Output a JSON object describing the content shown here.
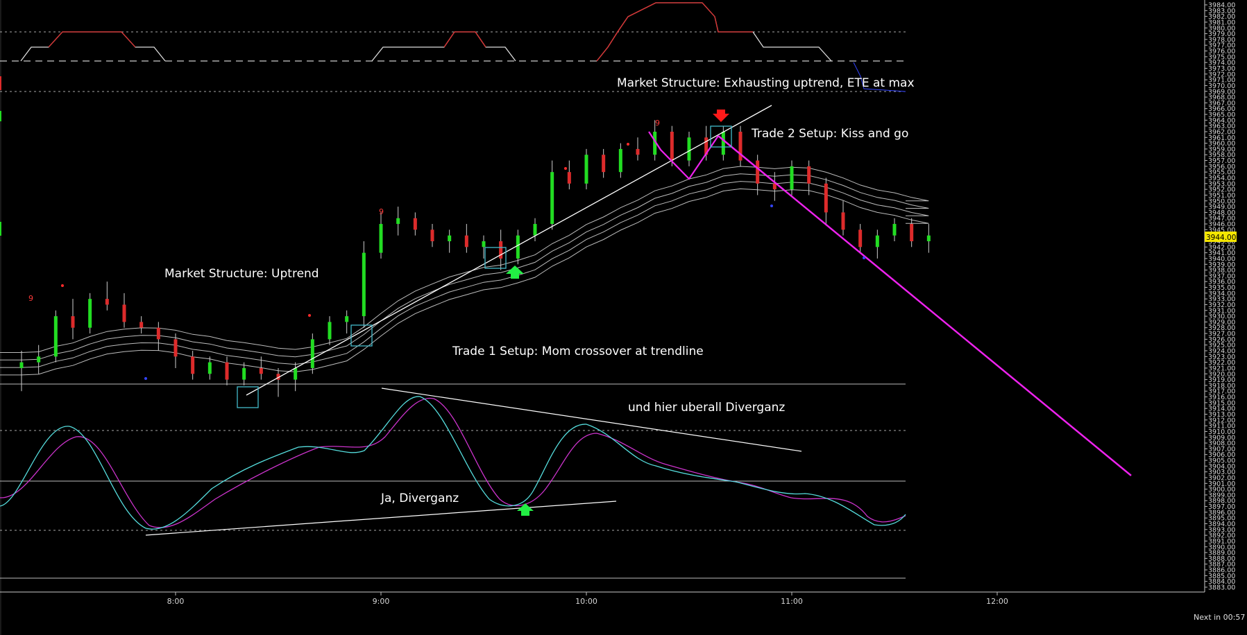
{
  "status_text": "Next in 00:57",
  "last_price_label": "3944.00",
  "colors": {
    "background": "#000000",
    "bull_candle": "#22dd22",
    "bear_candle": "#dd2b2b",
    "trendline": "#ffffff",
    "projection": "#ee22ee",
    "oscillator_fast": "#55dddd",
    "oscillator_slow": "#cc33cc",
    "signal_up": "#22ee44",
    "signal_down": "#ff1a1a",
    "box": "#44bbcc",
    "last_price_bg": "#f5e600"
  },
  "annotations": {
    "ms_exhausting": "Market Structure:  Exhausting uptrend, ETE at max",
    "trade2": "Trade 2 Setup:  Kiss and go",
    "ms_uptrend": "Market Structure:  Uptrend",
    "trade1": "Trade 1 Setup:  Mom crossover at trendline",
    "diverganz_overall": "und hier uberall Diverganz",
    "ja_diverganz": "Ja, Diverganz"
  },
  "count_labels": [
    "9",
    "9",
    "9"
  ],
  "chart_data": {
    "type": "candlestick",
    "title": "",
    "x_ticks": [
      "8:00",
      "9:00",
      "10:00",
      "11:00",
      "12:00"
    ],
    "x_range": [
      "7:12",
      "12:50"
    ],
    "y_range": [
      3883,
      3985
    ],
    "y_step": 1,
    "bar_minutes": 5,
    "candles": [
      {
        "t": "7:15",
        "o": 3921,
        "h": 3924,
        "l": 3917,
        "c": 3922
      },
      {
        "t": "7:20",
        "o": 3922,
        "h": 3925,
        "l": 3920,
        "c": 3923
      },
      {
        "t": "7:25",
        "o": 3923,
        "h": 3931,
        "l": 3922,
        "c": 3930
      },
      {
        "t": "7:30",
        "o": 3930,
        "h": 3933,
        "l": 3926,
        "c": 3928
      },
      {
        "t": "7:35",
        "o": 3928,
        "h": 3934,
        "l": 3927,
        "c": 3933
      },
      {
        "t": "7:40",
        "o": 3933,
        "h": 3936,
        "l": 3931,
        "c": 3932
      },
      {
        "t": "7:45",
        "o": 3932,
        "h": 3934,
        "l": 3928,
        "c": 3929
      },
      {
        "t": "7:50",
        "o": 3929,
        "h": 3930,
        "l": 3927,
        "c": 3928
      },
      {
        "t": "7:55",
        "o": 3928,
        "h": 3929,
        "l": 3924,
        "c": 3926
      },
      {
        "t": "8:00",
        "o": 3926,
        "h": 3927,
        "l": 3921,
        "c": 3923
      },
      {
        "t": "8:05",
        "o": 3923,
        "h": 3924,
        "l": 3919,
        "c": 3920
      },
      {
        "t": "8:10",
        "o": 3920,
        "h": 3923,
        "l": 3919,
        "c": 3922
      },
      {
        "t": "8:15",
        "o": 3922,
        "h": 3923,
        "l": 3918,
        "c": 3919
      },
      {
        "t": "8:20",
        "o": 3919,
        "h": 3922,
        "l": 3918,
        "c": 3921
      },
      {
        "t": "8:25",
        "o": 3921,
        "h": 3923,
        "l": 3919,
        "c": 3920
      },
      {
        "t": "8:30",
        "o": 3920,
        "h": 3921,
        "l": 3916,
        "c": 3919
      },
      {
        "t": "8:35",
        "o": 3919,
        "h": 3922,
        "l": 3917,
        "c": 3921
      },
      {
        "t": "8:40",
        "o": 3921,
        "h": 3927,
        "l": 3920,
        "c": 3926
      },
      {
        "t": "8:45",
        "o": 3926,
        "h": 3930,
        "l": 3925,
        "c": 3929
      },
      {
        "t": "8:50",
        "o": 3929,
        "h": 3931,
        "l": 3927,
        "c": 3930
      },
      {
        "t": "8:55",
        "o": 3930,
        "h": 3943,
        "l": 3928,
        "c": 3941
      },
      {
        "t": "9:00",
        "o": 3941,
        "h": 3948,
        "l": 3940,
        "c": 3946
      },
      {
        "t": "9:05",
        "o": 3946,
        "h": 3949,
        "l": 3944,
        "c": 3947
      },
      {
        "t": "9:10",
        "o": 3947,
        "h": 3948,
        "l": 3944,
        "c": 3945
      },
      {
        "t": "9:15",
        "o": 3945,
        "h": 3946,
        "l": 3942,
        "c": 3943
      },
      {
        "t": "9:20",
        "o": 3943,
        "h": 3945,
        "l": 3941,
        "c": 3944
      },
      {
        "t": "9:25",
        "o": 3944,
        "h": 3946,
        "l": 3941,
        "c": 3942
      },
      {
        "t": "9:30",
        "o": 3942,
        "h": 3944,
        "l": 3940,
        "c": 3943
      },
      {
        "t": "9:35",
        "o": 3943,
        "h": 3945,
        "l": 3938,
        "c": 3940
      },
      {
        "t": "9:40",
        "o": 3940,
        "h": 3945,
        "l": 3939,
        "c": 3944
      },
      {
        "t": "9:45",
        "o": 3944,
        "h": 3947,
        "l": 3943,
        "c": 3946
      },
      {
        "t": "9:50",
        "o": 3946,
        "h": 3957,
        "l": 3945,
        "c": 3955
      },
      {
        "t": "9:55",
        "o": 3955,
        "h": 3957,
        "l": 3952,
        "c": 3953
      },
      {
        "t": "10:00",
        "o": 3953,
        "h": 3959,
        "l": 3952,
        "c": 3958
      },
      {
        "t": "10:05",
        "o": 3958,
        "h": 3959,
        "l": 3954,
        "c": 3955
      },
      {
        "t": "10:10",
        "o": 3955,
        "h": 3960,
        "l": 3954,
        "c": 3959
      },
      {
        "t": "10:15",
        "o": 3959,
        "h": 3961,
        "l": 3957,
        "c": 3958
      },
      {
        "t": "10:20",
        "o": 3958,
        "h": 3964,
        "l": 3957,
        "c": 3962
      },
      {
        "t": "10:25",
        "o": 3962,
        "h": 3963,
        "l": 3956,
        "c": 3957
      },
      {
        "t": "10:30",
        "o": 3957,
        "h": 3962,
        "l": 3956,
        "c": 3961
      },
      {
        "t": "10:35",
        "o": 3961,
        "h": 3963,
        "l": 3957,
        "c": 3958
      },
      {
        "t": "10:40",
        "o": 3958,
        "h": 3963,
        "l": 3957,
        "c": 3962
      },
      {
        "t": "10:45",
        "o": 3962,
        "h": 3963,
        "l": 3956,
        "c": 3957
      },
      {
        "t": "10:50",
        "o": 3957,
        "h": 3958,
        "l": 3951,
        "c": 3953
      },
      {
        "t": "10:55",
        "o": 3953,
        "h": 3955,
        "l": 3950,
        "c": 3952
      },
      {
        "t": "11:00",
        "o": 3952,
        "h": 3957,
        "l": 3951,
        "c": 3956
      },
      {
        "t": "11:05",
        "o": 3956,
        "h": 3957,
        "l": 3951,
        "c": 3953
      },
      {
        "t": "11:10",
        "o": 3953,
        "h": 3954,
        "l": 3946,
        "c": 3948
      },
      {
        "t": "11:15",
        "o": 3948,
        "h": 3950,
        "l": 3944,
        "c": 3945
      },
      {
        "t": "11:20",
        "o": 3945,
        "h": 3946,
        "l": 3941,
        "c": 3942
      },
      {
        "t": "11:25",
        "o": 3942,
        "h": 3945,
        "l": 3940,
        "c": 3944
      },
      {
        "t": "11:30",
        "o": 3944,
        "h": 3947,
        "l": 3943,
        "c": 3946
      },
      {
        "t": "11:35",
        "o": 3946,
        "h": 3947,
        "l": 3942,
        "c": 3943
      },
      {
        "t": "11:40",
        "o": 3943,
        "h": 3946,
        "l": 3941,
        "c": 3944
      }
    ],
    "last_price": 3944.0
  }
}
